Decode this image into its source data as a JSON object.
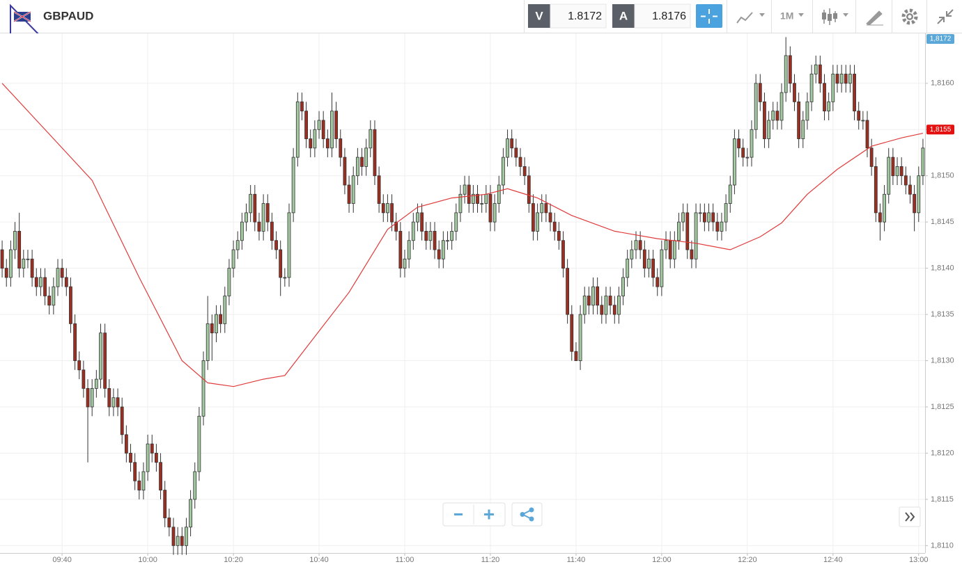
{
  "header": {
    "symbol": "GBPAUD",
    "bid_label": "V",
    "bid": 1.8172,
    "ask_label": "A",
    "ask": 1.8176,
    "timeframe": "1M"
  },
  "chart_data": {
    "type": "candlestick",
    "x": [
      566,
      567,
      568,
      569,
      570,
      571,
      572,
      573,
      574,
      575,
      576,
      577,
      578,
      579,
      580,
      581,
      582,
      583,
      584,
      585,
      586,
      587,
      588,
      589,
      590,
      591,
      592,
      593,
      594,
      595,
      596,
      597,
      598,
      599,
      600,
      601,
      602,
      603,
      604,
      605,
      606,
      607,
      608,
      609,
      610,
      611,
      612,
      613,
      614,
      615,
      616,
      617,
      618,
      619,
      620,
      621,
      622,
      623,
      624,
      625,
      626,
      627,
      628,
      629,
      630,
      631,
      632,
      633,
      634,
      635,
      636,
      637,
      638,
      639,
      640,
      641,
      642,
      643,
      644,
      645,
      646,
      647,
      648,
      649,
      650,
      651,
      652,
      653,
      654,
      655,
      656,
      657,
      658,
      659,
      660,
      661,
      662,
      663,
      664,
      665,
      666,
      667,
      668,
      669,
      670,
      671,
      672,
      673,
      674,
      675,
      676,
      677,
      678,
      679,
      680,
      681,
      682,
      683,
      684,
      685,
      686,
      687,
      688,
      689,
      690,
      691,
      692,
      693,
      694,
      695,
      696,
      697,
      698,
      699,
      700,
      701,
      702,
      703,
      704,
      705,
      706,
      707,
      708,
      709,
      710,
      711,
      712,
      713,
      714,
      715,
      716,
      717,
      718,
      719,
      720,
      721,
      722,
      723,
      724,
      725,
      726,
      727,
      728,
      729,
      730,
      731,
      732,
      733,
      734,
      735,
      736,
      737,
      738,
      739,
      740,
      741,
      742,
      743,
      744,
      745,
      746,
      747,
      748,
      749,
      750,
      751,
      752,
      753,
      754,
      755,
      756,
      757,
      758,
      759,
      760,
      761,
      762,
      763,
      764,
      765,
      766,
      767,
      768,
      769,
      770,
      771,
      772,
      773,
      774,
      775,
      776,
      777,
      778,
      779,
      780,
      781
    ],
    "open": [
      1.8142,
      1.814,
      1.8139,
      1.8142,
      1.8144,
      1.814,
      1.8141,
      1.8141,
      1.8139,
      1.8138,
      1.8139,
      1.8137,
      1.8136,
      1.8138,
      1.814,
      1.8139,
      1.8138,
      1.8134,
      1.813,
      1.8129,
      1.8127,
      1.8125,
      1.8127,
      1.8128,
      1.8133,
      1.8127,
      1.8125,
      1.8126,
      1.8125,
      1.8122,
      1.812,
      1.8119,
      1.8117,
      1.8116,
      1.8118,
      1.8121,
      1.812,
      1.8119,
      1.8116,
      1.8113,
      1.8112,
      1.811,
      1.8111,
      1.811,
      1.8112,
      1.8115,
      1.8118,
      1.8124,
      1.813,
      1.8134,
      1.8133,
      1.8135,
      1.8134,
      1.8137,
      1.814,
      1.8142,
      1.8143,
      1.8145,
      1.8146,
      1.8148,
      1.8145,
      1.8144,
      1.8147,
      1.8145,
      1.8143,
      1.8142,
      1.8139,
      1.8139,
      1.8146,
      1.8152,
      1.8158,
      1.8157,
      1.8154,
      1.8153,
      1.8155,
      1.8156,
      1.8154,
      1.8153,
      1.8157,
      1.8154,
      1.8152,
      1.8149,
      1.8147,
      1.815,
      1.8152,
      1.8151,
      1.8153,
      1.8155,
      1.815,
      1.8147,
      1.8146,
      1.8147,
      1.8145,
      1.8144,
      1.814,
      1.8141,
      1.8143,
      1.8145,
      1.8146,
      1.8144,
      1.8143,
      1.8144,
      1.8142,
      1.8141,
      1.8143,
      1.8143,
      1.8144,
      1.8146,
      1.8148,
      1.8149,
      1.8147,
      1.8148,
      1.8147,
      1.8147,
      1.8148,
      1.8145,
      1.8147,
      1.8149,
      1.8152,
      1.8154,
      1.8153,
      1.8152,
      1.8151,
      1.815,
      1.8147,
      1.8144,
      1.8146,
      1.8147,
      1.8146,
      1.8145,
      1.8144,
      1.8143,
      1.814,
      1.8135,
      1.8131,
      1.813,
      1.8135,
      1.8137,
      1.8136,
      1.8138,
      1.8136,
      1.8135,
      1.8137,
      1.8136,
      1.8135,
      1.8137,
      1.8139,
      1.8141,
      1.8142,
      1.8143,
      1.8142,
      1.814,
      1.8141,
      1.8139,
      1.8138,
      1.8142,
      1.8143,
      1.8141,
      1.8143,
      1.8145,
      1.8146,
      1.8142,
      1.8141,
      1.8146,
      1.8146,
      1.8145,
      1.8146,
      1.8145,
      1.8144,
      1.8145,
      1.8147,
      1.8149,
      1.8154,
      1.8153,
      1.8152,
      1.8152,
      1.8155,
      1.816,
      1.8158,
      1.8154,
      1.8156,
      1.8157,
      1.8156,
      1.8159,
      1.8163,
      1.816,
      1.8158,
      1.8154,
      1.8156,
      1.8158,
      1.8161,
      1.8162,
      1.816,
      1.8157,
      1.8158,
      1.8161,
      1.816,
      1.8161,
      1.816,
      1.8161,
      1.8157,
      1.8156,
      1.8156,
      1.8153,
      1.8151,
      1.8146,
      1.8145,
      1.8148,
      1.8152,
      1.815,
      1.8151,
      1.815,
      1.8149,
      1.8148,
      1.8146,
      1.815
    ],
    "high": [
      1.8143,
      1.8141,
      1.8143,
      1.8145,
      1.8146,
      1.8142,
      1.8142,
      1.8142,
      1.814,
      1.814,
      1.814,
      1.8138,
      1.8139,
      1.8141,
      1.8141,
      1.814,
      1.8139,
      1.8135,
      1.8131,
      1.813,
      1.8128,
      1.8128,
      1.8129,
      1.8134,
      1.8134,
      1.8128,
      1.8127,
      1.8127,
      1.8126,
      1.8123,
      1.8121,
      1.812,
      1.8118,
      1.8119,
      1.8122,
      1.8122,
      1.8121,
      1.812,
      1.8117,
      1.8114,
      1.8113,
      1.8112,
      1.8112,
      1.8113,
      1.8116,
      1.8119,
      1.8125,
      1.8131,
      1.8137,
      1.8135,
      1.8136,
      1.8136,
      1.8138,
      1.8141,
      1.8143,
      1.8144,
      1.8146,
      1.8147,
      1.8149,
      1.8149,
      1.8146,
      1.8148,
      1.8148,
      1.8146,
      1.8144,
      1.8143,
      1.814,
      1.8147,
      1.8153,
      1.8159,
      1.8159,
      1.8158,
      1.8155,
      1.8156,
      1.8157,
      1.8157,
      1.8155,
      1.8159,
      1.8158,
      1.8155,
      1.8153,
      1.815,
      1.8151,
      1.8153,
      1.8153,
      1.8154,
      1.8156,
      1.8156,
      1.8151,
      1.8148,
      1.8148,
      1.8148,
      1.8146,
      1.8145,
      1.8142,
      1.8144,
      1.8146,
      1.8147,
      1.8147,
      1.8145,
      1.8145,
      1.8145,
      1.8143,
      1.8144,
      1.8144,
      1.8145,
      1.8147,
      1.8149,
      1.815,
      1.815,
      1.8149,
      1.8149,
      1.8148,
      1.8149,
      1.8149,
      1.8148,
      1.815,
      1.8153,
      1.8155,
      1.8155,
      1.8154,
      1.8153,
      1.8152,
      1.8151,
      1.8148,
      1.8147,
      1.8148,
      1.8148,
      1.8147,
      1.8146,
      1.8145,
      1.8144,
      1.8141,
      1.8136,
      1.8132,
      1.8136,
      1.8138,
      1.8138,
      1.8139,
      1.8139,
      1.8137,
      1.8138,
      1.8138,
      1.8137,
      1.8138,
      1.814,
      1.8142,
      1.8143,
      1.8144,
      1.8144,
      1.8143,
      1.8142,
      1.8142,
      1.814,
      1.8143,
      1.8144,
      1.8144,
      1.8144,
      1.8146,
      1.8147,
      1.8147,
      1.8143,
      1.8147,
      1.8147,
      1.8147,
      1.8147,
      1.8147,
      1.8146,
      1.8146,
      1.8148,
      1.815,
      1.8155,
      1.8155,
      1.8154,
      1.8153,
      1.8156,
      1.8161,
      1.8161,
      1.8159,
      1.8157,
      1.8158,
      1.8158,
      1.816,
      1.8165,
      1.8164,
      1.8161,
      1.8159,
      1.8157,
      1.8159,
      1.8162,
      1.8163,
      1.8163,
      1.8161,
      1.8159,
      1.8162,
      1.8162,
      1.8162,
      1.8162,
      1.8162,
      1.8162,
      1.8158,
      1.8157,
      1.8157,
      1.8154,
      1.8152,
      1.8147,
      1.8149,
      1.8153,
      1.8153,
      1.8152,
      1.8152,
      1.8151,
      1.815,
      1.8149,
      1.8151,
      1.8154
    ],
    "low": [
      1.8139,
      1.8138,
      1.8138,
      1.8141,
      1.8139,
      1.8139,
      1.814,
      1.8138,
      1.8137,
      1.8137,
      1.8136,
      1.8135,
      1.8135,
      1.8137,
      1.8138,
      1.8137,
      1.8133,
      1.8129,
      1.8128,
      1.8126,
      1.8119,
      1.8124,
      1.8126,
      1.8127,
      1.8126,
      1.8124,
      1.8124,
      1.8124,
      1.8121,
      1.8119,
      1.8118,
      1.8116,
      1.8115,
      1.8115,
      1.8117,
      1.8119,
      1.8118,
      1.8115,
      1.8112,
      1.8111,
      1.8109,
      1.8109,
      1.8109,
      1.8109,
      1.8111,
      1.8114,
      1.8117,
      1.8123,
      1.8129,
      1.813,
      1.8132,
      1.8133,
      1.8133,
      1.8136,
      1.8139,
      1.8141,
      1.8142,
      1.8144,
      1.8145,
      1.8144,
      1.8143,
      1.8143,
      1.8144,
      1.8142,
      1.8141,
      1.8137,
      1.8138,
      1.8138,
      1.8145,
      1.8151,
      1.8156,
      1.8153,
      1.8152,
      1.8152,
      1.8154,
      1.8153,
      1.8152,
      1.8152,
      1.8153,
      1.8151,
      1.8148,
      1.8146,
      1.8146,
      1.8149,
      1.815,
      1.815,
      1.8152,
      1.8149,
      1.8146,
      1.8145,
      1.8145,
      1.8144,
      1.8143,
      1.8139,
      1.8139,
      1.814,
      1.8142,
      1.8144,
      1.8143,
      1.8142,
      1.8142,
      1.8141,
      1.814,
      1.814,
      1.8142,
      1.8142,
      1.8143,
      1.8145,
      1.8147,
      1.8146,
      1.8146,
      1.8146,
      1.8146,
      1.8146,
      1.8144,
      1.8144,
      1.8146,
      1.8148,
      1.8151,
      1.8152,
      1.8151,
      1.815,
      1.8149,
      1.8146,
      1.8143,
      1.8143,
      1.8145,
      1.8145,
      1.8144,
      1.8143,
      1.8142,
      1.8139,
      1.8134,
      1.813,
      1.813,
      1.8129,
      1.8134,
      1.8135,
      1.8135,
      1.8135,
      1.8134,
      1.8134,
      1.8135,
      1.8134,
      1.8134,
      1.8136,
      1.8138,
      1.814,
      1.8141,
      1.8141,
      1.8139,
      1.8139,
      1.8138,
      1.8137,
      1.8137,
      1.8141,
      1.814,
      1.814,
      1.8142,
      1.8144,
      1.8141,
      1.814,
      1.814,
      1.8145,
      1.8144,
      1.8144,
      1.8144,
      1.8143,
      1.8143,
      1.8144,
      1.8146,
      1.8148,
      1.8152,
      1.8151,
      1.8151,
      1.8151,
      1.8154,
      1.8157,
      1.8153,
      1.8153,
      1.8155,
      1.8155,
      1.8155,
      1.8158,
      1.8159,
      1.8157,
      1.8153,
      1.8153,
      1.8155,
      1.8157,
      1.816,
      1.8159,
      1.8156,
      1.8156,
      1.8157,
      1.8159,
      1.8159,
      1.8159,
      1.8159,
      1.8156,
      1.8155,
      1.8155,
      1.8152,
      1.815,
      1.8145,
      1.8143,
      1.8144,
      1.8147,
      1.8149,
      1.8149,
      1.8149,
      1.8148,
      1.8147,
      1.8144,
      1.8145,
      1.8149
    ],
    "close": [
      1.814,
      1.8139,
      1.8142,
      1.8144,
      1.814,
      1.8141,
      1.8141,
      1.8139,
      1.8138,
      1.8139,
      1.8137,
      1.8136,
      1.8138,
      1.814,
      1.8139,
      1.8138,
      1.8134,
      1.813,
      1.8129,
      1.8127,
      1.8125,
      1.8127,
      1.8128,
      1.8133,
      1.8127,
      1.8125,
      1.8126,
      1.8125,
      1.8122,
      1.812,
      1.8119,
      1.8117,
      1.8116,
      1.8118,
      1.8121,
      1.812,
      1.8119,
      1.8116,
      1.8113,
      1.8112,
      1.811,
      1.8111,
      1.811,
      1.8112,
      1.8115,
      1.8118,
      1.8124,
      1.813,
      1.8134,
      1.8133,
      1.8135,
      1.8134,
      1.8137,
      1.814,
      1.8142,
      1.8143,
      1.8145,
      1.8146,
      1.8148,
      1.8145,
      1.8144,
      1.8147,
      1.8145,
      1.8143,
      1.8142,
      1.8139,
      1.8139,
      1.8146,
      1.8152,
      1.8158,
      1.8157,
      1.8154,
      1.8153,
      1.8155,
      1.8156,
      1.8154,
      1.8153,
      1.8157,
      1.8154,
      1.8152,
      1.8149,
      1.8147,
      1.815,
      1.8152,
      1.8151,
      1.8153,
      1.8155,
      1.815,
      1.8147,
      1.8146,
      1.8147,
      1.8145,
      1.8144,
      1.814,
      1.8141,
      1.8143,
      1.8145,
      1.8146,
      1.8144,
      1.8143,
      1.8144,
      1.8142,
      1.8141,
      1.8143,
      1.8143,
      1.8144,
      1.8146,
      1.8148,
      1.8149,
      1.8147,
      1.8148,
      1.8147,
      1.8147,
      1.8148,
      1.8145,
      1.8147,
      1.8149,
      1.8152,
      1.8154,
      1.8153,
      1.8152,
      1.8151,
      1.815,
      1.8147,
      1.8144,
      1.8146,
      1.8147,
      1.8146,
      1.8145,
      1.8144,
      1.8143,
      1.814,
      1.8135,
      1.8131,
      1.813,
      1.8135,
      1.8137,
      1.8136,
      1.8138,
      1.8136,
      1.8135,
      1.8137,
      1.8136,
      1.8135,
      1.8137,
      1.8139,
      1.8141,
      1.8142,
      1.8143,
      1.8142,
      1.814,
      1.8141,
      1.8139,
      1.8138,
      1.8142,
      1.8143,
      1.8141,
      1.8143,
      1.8145,
      1.8146,
      1.8142,
      1.8141,
      1.8146,
      1.8146,
      1.8145,
      1.8146,
      1.8145,
      1.8144,
      1.8145,
      1.8147,
      1.8149,
      1.8154,
      1.8153,
      1.8152,
      1.8152,
      1.8155,
      1.816,
      1.8158,
      1.8154,
      1.8156,
      1.8157,
      1.8156,
      1.8159,
      1.8163,
      1.816,
      1.8158,
      1.8154,
      1.8156,
      1.8158,
      1.8161,
      1.8162,
      1.816,
      1.8157,
      1.8158,
      1.8161,
      1.816,
      1.8161,
      1.816,
      1.8161,
      1.8157,
      1.8156,
      1.8156,
      1.8153,
      1.8151,
      1.8146,
      1.8145,
      1.8148,
      1.8152,
      1.815,
      1.8151,
      1.815,
      1.8149,
      1.8148,
      1.8146,
      1.815,
      1.8153
    ],
    "up_color": "#a3c9a0",
    "down_color": "#9e2e1f",
    "overlay": {
      "type": "line",
      "color": "#e03a3a",
      "x": [
        566,
        578,
        587,
        598,
        608,
        614,
        620,
        627,
        632,
        637,
        647,
        656,
        663,
        671,
        679,
        684,
        691,
        699,
        709,
        719,
        728,
        736,
        743,
        748,
        754,
        761,
        769,
        776,
        781
      ],
      "values": [
        1.816,
        1.8154,
        1.81495,
        1.8139,
        1.813,
        1.81276,
        1.81272,
        1.8128,
        1.81284,
        1.81314,
        1.81374,
        1.81442,
        1.81466,
        1.81476,
        1.8148,
        1.81486,
        1.81476,
        1.81457,
        1.8144,
        1.81432,
        1.81427,
        1.8142,
        1.81434,
        1.81449,
        1.8148,
        1.81507,
        1.81532,
        1.81541,
        1.81546
      ]
    },
    "xlim": [
      565.5,
      781.5
    ],
    "ylim": [
      1.81092,
      1.81654
    ],
    "xticks": [
      {
        "value": 580,
        "label": "09:40"
      },
      {
        "value": 600,
        "label": "10:00"
      },
      {
        "value": 620,
        "label": "10:20"
      },
      {
        "value": 640,
        "label": "10:40"
      },
      {
        "value": 660,
        "label": "11:00"
      },
      {
        "value": 680,
        "label": "11:20"
      },
      {
        "value": 700,
        "label": "11:40"
      },
      {
        "value": 720,
        "label": "12:00"
      },
      {
        "value": 740,
        "label": "12:20"
      },
      {
        "value": 760,
        "label": "12:40"
      },
      {
        "value": 780,
        "label": "13:00"
      }
    ],
    "yticks": [
      {
        "value": 1.811,
        "label": "1,8110"
      },
      {
        "value": 1.8115,
        "label": "1,8115"
      },
      {
        "value": 1.812,
        "label": "1,8120"
      },
      {
        "value": 1.8125,
        "label": "1,8125"
      },
      {
        "value": 1.813,
        "label": "1,8130"
      },
      {
        "value": 1.8135,
        "label": "1,8135"
      },
      {
        "value": 1.814,
        "label": "1,8140"
      },
      {
        "value": 1.8145,
        "label": "1,8145"
      },
      {
        "value": 1.815,
        "label": "1,8150"
      },
      {
        "value": 1.8155,
        "label": "1,8155"
      },
      {
        "value": 1.816,
        "label": "1,8160"
      }
    ],
    "grid": true,
    "price_labels": [
      {
        "value": 1.8172,
        "label": "1,8172",
        "color": "#5aa7d8"
      },
      {
        "value": 1.8155,
        "label": "1,8155",
        "color": "#e3110f"
      }
    ]
  }
}
